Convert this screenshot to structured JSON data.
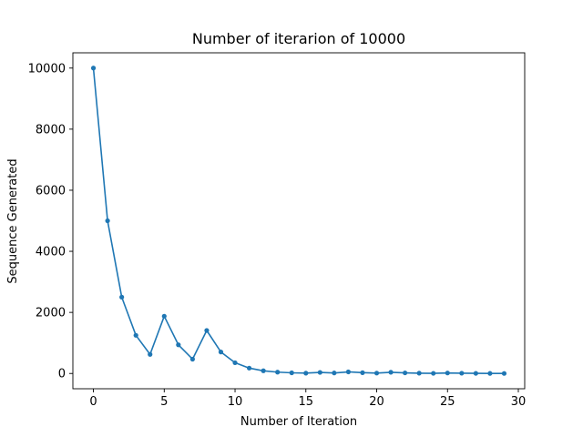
{
  "chart_data": {
    "type": "line",
    "title": "Number of iterarion of 10000",
    "xlabel": "Number of Iteration",
    "ylabel": "Sequence Generated",
    "xlim": [
      -1.45,
      30.45
    ],
    "ylim": [
      -500,
      10500
    ],
    "xticks": [
      0,
      5,
      10,
      15,
      20,
      25,
      30
    ],
    "yticks": [
      0,
      2000,
      4000,
      6000,
      8000,
      10000
    ],
    "grid": false,
    "color": "#1f77b4",
    "series": [
      {
        "x": [
          0,
          1,
          2,
          3,
          4,
          5,
          6,
          7,
          8,
          9,
          10,
          11,
          12,
          13,
          14,
          15,
          16,
          17,
          18,
          19,
          20,
          21,
          22,
          23,
          24,
          25,
          26,
          27,
          28,
          29
        ],
        "values": [
          10000,
          5000,
          2500,
          1250,
          625,
          1876,
          938,
          469,
          1408,
          704,
          352,
          176,
          88,
          44,
          22,
          11,
          34,
          17,
          52,
          26,
          13,
          40,
          20,
          10,
          5,
          16,
          8,
          4,
          2,
          1
        ]
      }
    ]
  }
}
